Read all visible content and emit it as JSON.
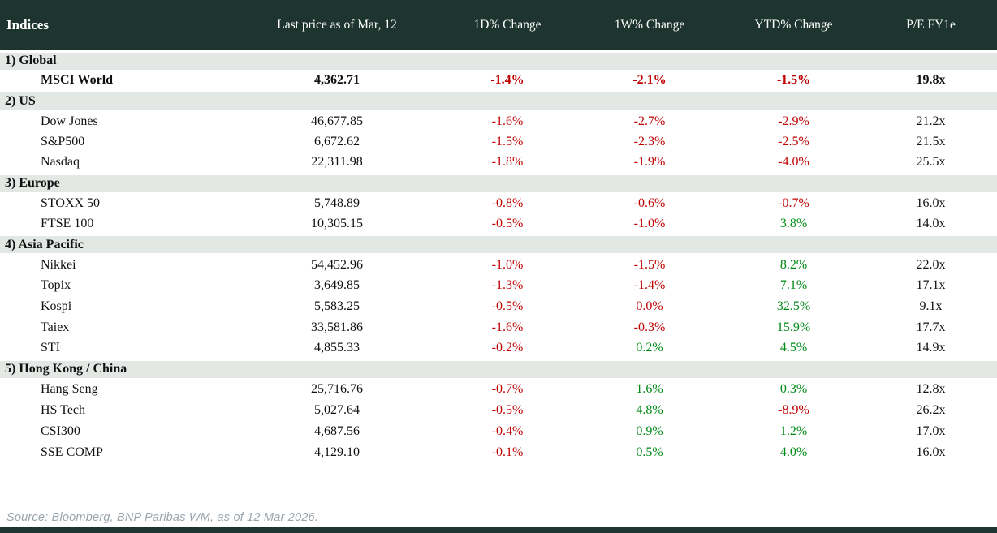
{
  "colors": {
    "header_bg": "#1d352e",
    "section_row_bg": "#e3e8e4",
    "negative_text": "#c00000",
    "positive_text": "#008a16",
    "body_text": "#111111",
    "source_text": "#9aa4ac"
  },
  "chart_data": {
    "type": "table",
    "title": "Indices",
    "columns": [
      "Indices",
      "Last price as of Mar, 12",
      "1D% Change",
      "1W% Change",
      "YTD% Change",
      "P/E FY1e"
    ],
    "sections": [
      {
        "label": "1) Global",
        "rows": [
          {
            "name": "MSCI World",
            "bold": true,
            "last": "4,362.71",
            "d1": "-1.4%",
            "w1": "-2.1%",
            "ytd": "-1.5%",
            "pe": "19.8x"
          }
        ]
      },
      {
        "label": "2) US",
        "rows": [
          {
            "name": "Dow Jones",
            "bold": false,
            "last": "46,677.85",
            "d1": "-1.6%",
            "w1": "-2.7%",
            "ytd": "-2.9%",
            "pe": "21.2x"
          },
          {
            "name": "S&P500",
            "bold": false,
            "last": "6,672.62",
            "d1": "-1.5%",
            "w1": "-2.3%",
            "ytd": "-2.5%",
            "pe": "21.5x"
          },
          {
            "name": "Nasdaq",
            "bold": false,
            "last": "22,311.98",
            "d1": "-1.8%",
            "w1": "-1.9%",
            "ytd": "-4.0%",
            "pe": "25.5x"
          }
        ]
      },
      {
        "label": "3) Europe",
        "rows": [
          {
            "name": "STOXX 50",
            "bold": false,
            "last": "5,748.89",
            "d1": "-0.8%",
            "w1": "-0.6%",
            "ytd": "-0.7%",
            "pe": "16.0x"
          },
          {
            "name": "FTSE 100",
            "bold": false,
            "last": "10,305.15",
            "d1": "-0.5%",
            "w1": "-1.0%",
            "ytd": "3.8%",
            "pe": "14.0x"
          }
        ]
      },
      {
        "label": "4) Asia Pacific",
        "rows": [
          {
            "name": "Nikkei",
            "bold": false,
            "last": "54,452.96",
            "d1": "-1.0%",
            "w1": "-1.5%",
            "ytd": "8.2%",
            "pe": "22.0x"
          },
          {
            "name": "Topix",
            "bold": false,
            "last": "3,649.85",
            "d1": "-1.3%",
            "w1": "-1.4%",
            "ytd": "7.1%",
            "pe": "17.1x"
          },
          {
            "name": "Kospi",
            "bold": false,
            "last": "5,583.25",
            "d1": "-0.5%",
            "w1": "0.0%",
            "ytd": "32.5%",
            "pe": "9.1x"
          },
          {
            "name": "Taiex",
            "bold": false,
            "last": "33,581.86",
            "d1": "-1.6%",
            "w1": "-0.3%",
            "ytd": "15.9%",
            "pe": "17.7x"
          },
          {
            "name": "STI",
            "bold": false,
            "last": "4,855.33",
            "d1": "-0.2%",
            "w1": "0.2%",
            "ytd": "4.5%",
            "pe": "14.9x"
          }
        ]
      },
      {
        "label": "5) Hong Kong / China",
        "rows": [
          {
            "name": "Hang Seng",
            "bold": false,
            "last": "25,716.76",
            "d1": "-0.7%",
            "w1": "1.6%",
            "ytd": "0.3%",
            "pe": "12.8x"
          },
          {
            "name": "HS Tech",
            "bold": false,
            "last": "5,027.64",
            "d1": "-0.5%",
            "w1": "4.8%",
            "ytd": "-8.9%",
            "pe": "26.2x"
          },
          {
            "name": "CSI300",
            "bold": false,
            "last": "4,687.56",
            "d1": "-0.4%",
            "w1": "0.9%",
            "ytd": "1.2%",
            "pe": "17.0x"
          },
          {
            "name": "SSE COMP",
            "bold": false,
            "last": "4,129.10",
            "d1": "-0.1%",
            "w1": "0.5%",
            "ytd": "4.0%",
            "pe": "16.0x"
          }
        ]
      }
    ]
  },
  "footer": {
    "source": "Source: Bloomberg, BNP Paribas WM, as of 12 Mar 2026."
  }
}
